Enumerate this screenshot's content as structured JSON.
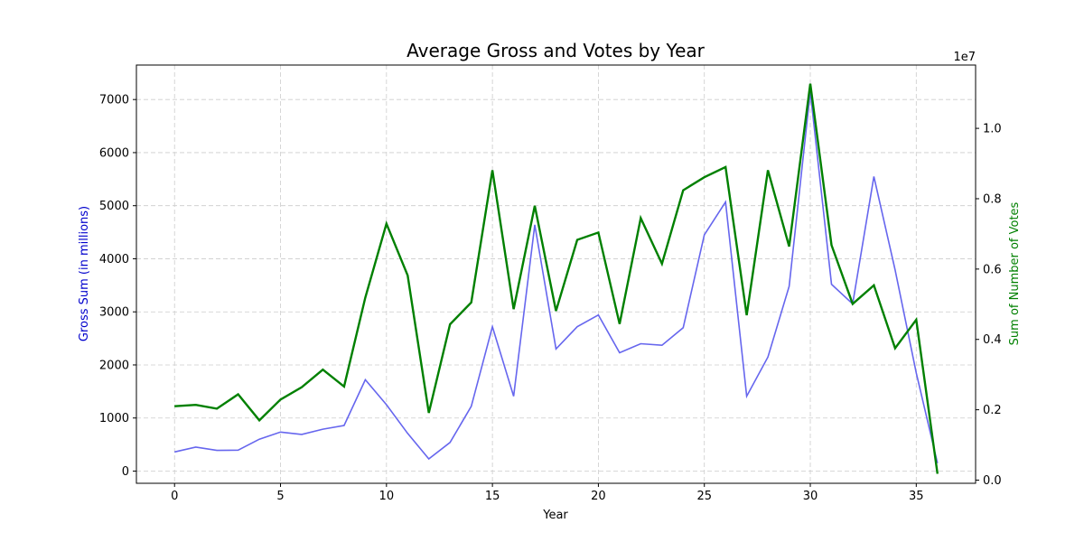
{
  "chart_data": {
    "type": "line",
    "title": "Average Gross and Votes by Year",
    "xlabel": "Year",
    "ylabel_left": "Gross Sum (in millions)",
    "ylabel_right": "Sum of Number of Votes",
    "right_axis_multiplier": "1e7",
    "xlim": [
      -1.8,
      37.8
    ],
    "ylim_left": [
      -230,
      7650
    ],
    "ylim_right": [
      -90000,
      11800000
    ],
    "x_ticks": [
      "0",
      "5",
      "10",
      "15",
      "20",
      "25",
      "30",
      "35"
    ],
    "y_ticks_left": [
      "0",
      "1000",
      "2000",
      "3000",
      "4000",
      "5000",
      "6000",
      "7000"
    ],
    "y_ticks_right": [
      "0.0",
      "0.2",
      "0.4",
      "0.6",
      "0.8",
      "1.0"
    ],
    "grid": true,
    "colors": {
      "gross": "#6666ee",
      "votes": "#008000",
      "left_label": "#0000cc",
      "right_label": "#008000",
      "grid": "#cccccc"
    },
    "x": [
      0,
      1,
      2,
      3,
      4,
      5,
      6,
      7,
      8,
      9,
      10,
      11,
      12,
      13,
      14,
      15,
      16,
      17,
      18,
      19,
      20,
      21,
      22,
      23,
      24,
      25,
      26,
      27,
      28,
      29,
      30,
      31,
      32,
      33,
      34,
      35,
      36
    ],
    "series": [
      {
        "axis": "left",
        "values": [
          360,
          450,
          390,
          395,
          600,
          735,
          690,
          790,
          860,
          1720,
          1250,
          710,
          230,
          540,
          1220,
          2720,
          1410,
          4640,
          2300,
          2720,
          2940,
          2230,
          2400,
          2370,
          2700,
          4450,
          5070,
          1410,
          2150,
          3480,
          7150,
          3520,
          3150,
          5550,
          3790,
          1850,
          150
        ]
      },
      {
        "axis": "right",
        "values": [
          2100000,
          2140000,
          2030000,
          2440000,
          1700000,
          2290000,
          2640000,
          3140000,
          2660000,
          5190000,
          7290000,
          5820000,
          1910000,
          4430000,
          5050000,
          8810000,
          4860000,
          7800000,
          4810000,
          6830000,
          7040000,
          4440000,
          7450000,
          6150000,
          8240000,
          8610000,
          8900000,
          4690000,
          8810000,
          6640000,
          11270000,
          6680000,
          5010000,
          5540000,
          3750000,
          4560000,
          180000
        ]
      }
    ]
  }
}
